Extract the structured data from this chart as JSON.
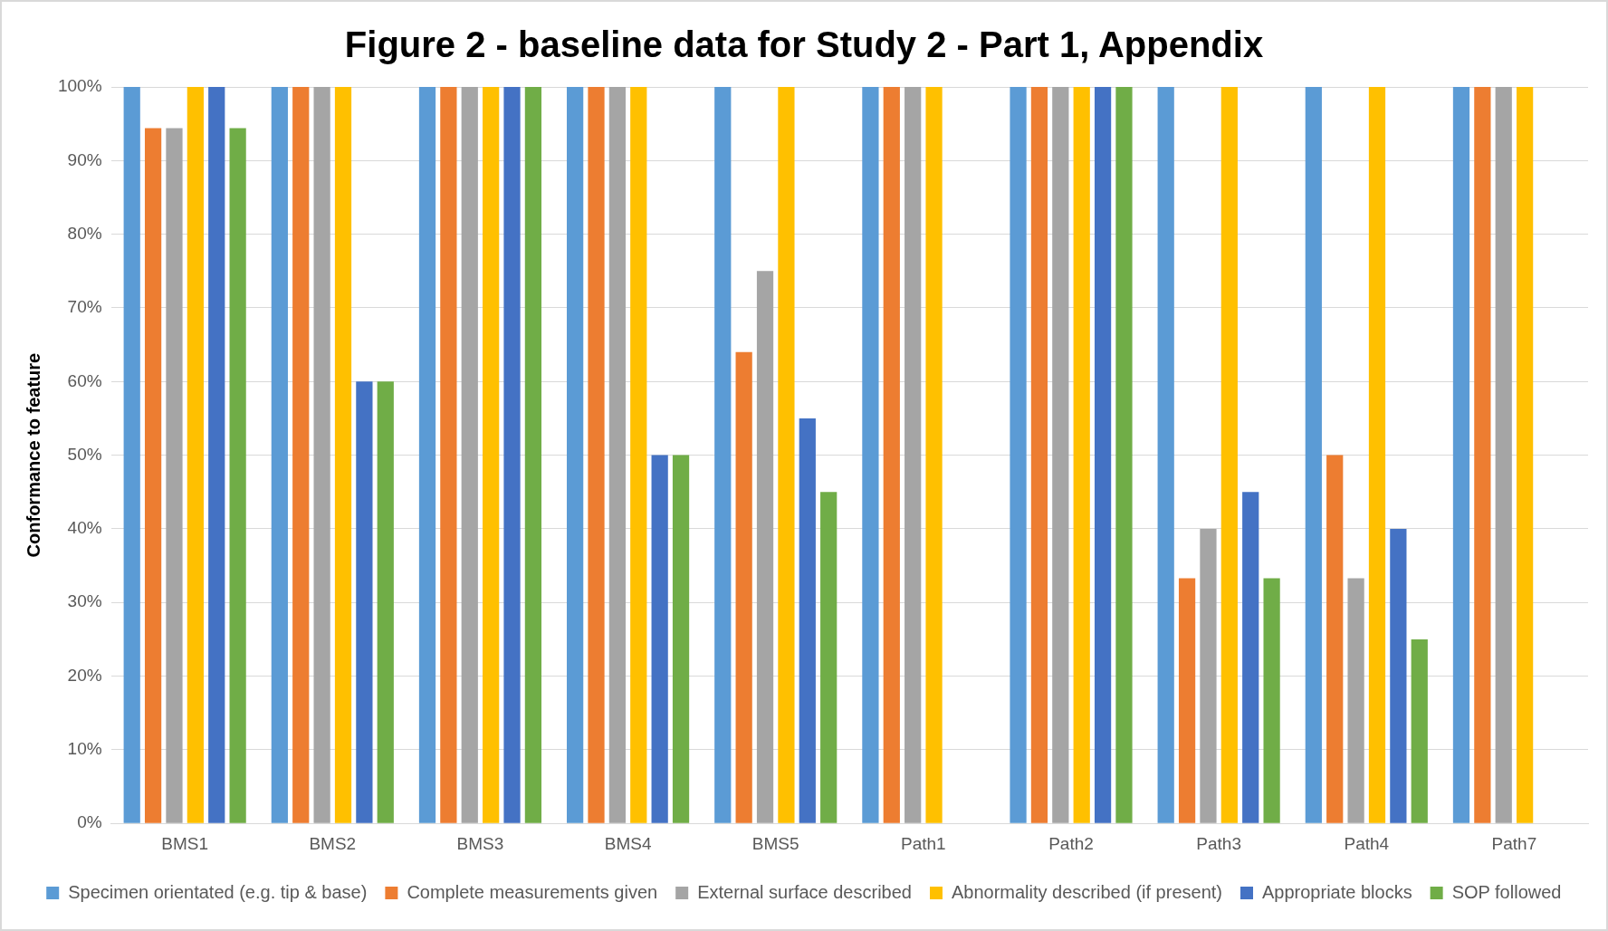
{
  "chart_data": {
    "type": "bar",
    "title": "Figure 2 - baseline data for Study 2 - Part 1, Appendix",
    "ylabel": "Conformance to feature",
    "categories": [
      "BMS1",
      "BMS2",
      "BMS3",
      "BMS4",
      "BMS5",
      "Path1",
      "Path2",
      "Path3",
      "Path4",
      "Path7"
    ],
    "series": [
      {
        "name": "Specimen orientated (e.g. tip & base)",
        "color": "#5b9bd5",
        "values": [
          100,
          100,
          100,
          100,
          100,
          100,
          100,
          100,
          100,
          100
        ]
      },
      {
        "name": "Complete measurements given",
        "color": "#ed7d31",
        "values": [
          94.4,
          100,
          100,
          100,
          64,
          100,
          100,
          33.3,
          50,
          100
        ]
      },
      {
        "name": "External surface described",
        "color": "#a5a5a5",
        "values": [
          94.4,
          100,
          100,
          100,
          75,
          100,
          100,
          40,
          33.3,
          100
        ]
      },
      {
        "name": "Abnormality described (if present)",
        "color": "#ffc000",
        "values": [
          100,
          100,
          100,
          100,
          100,
          100,
          100,
          100,
          100,
          100
        ]
      },
      {
        "name": "Appropriate blocks",
        "color": "#4472c4",
        "values": [
          100,
          60,
          100,
          50,
          55,
          null,
          100,
          45,
          40,
          null
        ]
      },
      {
        "name": "SOP followed",
        "color": "#70ad47",
        "values": [
          94.4,
          60,
          100,
          50,
          45,
          null,
          100,
          33.3,
          25,
          null
        ]
      }
    ],
    "ylim": [
      0,
      100
    ],
    "yticks": [
      {
        "value": 0,
        "label": "0%"
      },
      {
        "value": 10,
        "label": "10%"
      },
      {
        "value": 20,
        "label": "20%"
      },
      {
        "value": 30,
        "label": "30%"
      },
      {
        "value": 40,
        "label": "40%"
      },
      {
        "value": 50,
        "label": "50%"
      },
      {
        "value": 60,
        "label": "60%"
      },
      {
        "value": 70,
        "label": "70%"
      },
      {
        "value": 80,
        "label": "80%"
      },
      {
        "value": 90,
        "label": "90%"
      },
      {
        "value": 100,
        "label": "100%"
      }
    ],
    "grid": "y",
    "legend": "bottom"
  }
}
